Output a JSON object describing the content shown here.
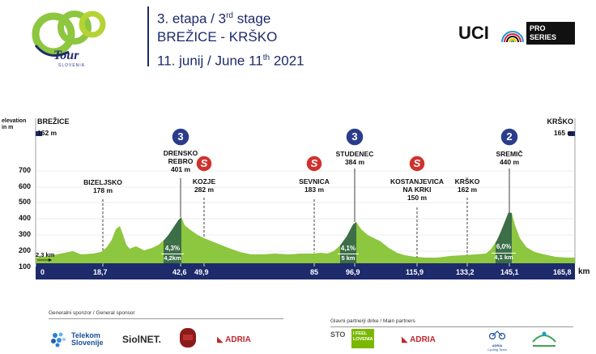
{
  "header": {
    "logo_text": "Tour",
    "logo_sub": "SLOVENIA",
    "stage_line": "3. etapa / 3",
    "stage_sup": "rd",
    "stage_suffix": " stage",
    "route": "BREŽICE - KRŠKO",
    "date_prefix": "11. junij / June 11",
    "date_sup": "th",
    "date_suffix": " 2021",
    "uci_text": "UCI",
    "pro_series_line1": "PRO",
    "pro_series_line2": "SERIES"
  },
  "profile": {
    "elevation_label_1": "elevation",
    "elevation_label_2": "in m",
    "start": {
      "name": "BREŽICE",
      "elev": "162 m"
    },
    "finish": {
      "name": "KRŠKO",
      "elev": "165 m"
    },
    "y_ticks": [
      "700",
      "600",
      "500",
      "400",
      "300",
      "200",
      "100"
    ],
    "km_unit": "km",
    "km_marks": [
      "0",
      "18,7",
      "42,6",
      "49,9",
      "85",
      "96,9",
      "115,9",
      "133,2",
      "145,1",
      "165,8"
    ],
    "places": [
      {
        "name": "BIZELJSKO",
        "elev": "178 m"
      },
      {
        "name": "DRENSKO",
        "name2": "REBRO",
        "elev": "401 m",
        "category": "3"
      },
      {
        "name": "KOZJE",
        "elev": "282 m",
        "sprint": "S"
      },
      {
        "name": "SEVNICA",
        "elev": "183 m",
        "sprint": "S"
      },
      {
        "name": "STUDENEC",
        "elev": "384 m",
        "category": "3"
      },
      {
        "name": "KOSTANJEVICA",
        "name2": "NA KRKI",
        "elev": "150 m",
        "sprint": "S"
      },
      {
        "name": "KRŠKO",
        "elev": "162 m"
      },
      {
        "name": "SREMIČ",
        "elev": "440 m",
        "category": "2"
      }
    ],
    "climbs": [
      {
        "gradient": "4,3%",
        "length": "4,2km"
      },
      {
        "gradient": "4,1%",
        "length": "5 km"
      },
      {
        "gradient": "6,0%",
        "length": "4,1 km"
      }
    ],
    "neutral": "2,3 km"
  },
  "footer": {
    "general_sponsor_label": "Generalni sponzor / General sponsor",
    "main_partners_label": "Glavni partnerji dirke / Main partners",
    "sponsors": [
      "Telekom",
      "Slovenije",
      "SiolNET.",
      "ADRIA"
    ],
    "partners": [
      "STO",
      "I FEEL",
      "LOVENIA",
      "ADRIA",
      "ADRIA",
      "Cycling Team"
    ]
  },
  "colors": {
    "navy": "#1d2a6b",
    "green_profile": "#8dc63f",
    "dark_green_climb": "#3c6e47",
    "badge_blue": "#2c3c8c",
    "sprint_red": "#d0312d"
  }
}
